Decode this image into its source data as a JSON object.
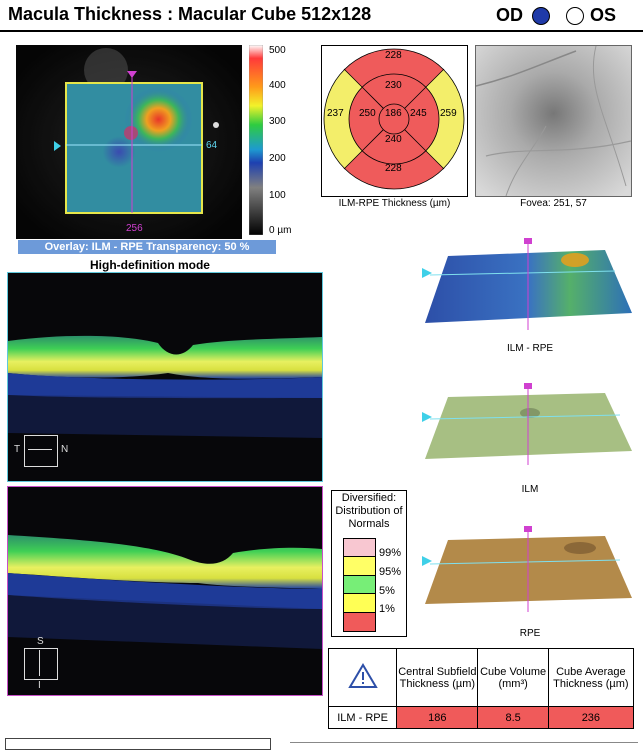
{
  "header": {
    "title": "Macula Thickness : Macular Cube 512x128",
    "eye_od": "OD",
    "eye_os": "OS",
    "od_color": "#1f3aa8"
  },
  "fundus_overlay": {
    "scan_y_label": "64",
    "scan_x_label": "256",
    "overlay_text": "Overlay: ILM - RPE  Transparency: 50 %",
    "scale_labels": [
      "500",
      "400",
      "300",
      "200",
      "100",
      "0 µm"
    ]
  },
  "mode_label": "High-definition mode",
  "etdrs_map": {
    "values": {
      "outer_top": "228",
      "inner_top": "230",
      "outer_left": "237",
      "inner_left": "250",
      "center": "186",
      "inner_right": "245",
      "outer_right": "259",
      "inner_bottom": "240",
      "outer_bottom": "228"
    },
    "caption": "ILM-RPE Thickness (µm)"
  },
  "fovea": {
    "caption": "Fovea: 251, 57"
  },
  "bscan_labels": {
    "horizontal": {
      "left": "T",
      "right": "N"
    },
    "vertical": {
      "top": "S",
      "bottom": "I"
    }
  },
  "surfaces": [
    {
      "caption": "ILM - RPE"
    },
    {
      "caption": "ILM"
    },
    {
      "caption": "RPE"
    }
  ],
  "normals_legend": {
    "title": "Diversified: Distribution of Normals",
    "levels": [
      {
        "label": "99%",
        "color": "#f8c7d1"
      },
      {
        "label": "95%",
        "color": "#ffff66"
      },
      {
        "label": "5%",
        "color": "#77ee77"
      },
      {
        "label": "1%",
        "color": "#ffff55"
      },
      {
        "label": "",
        "color": "#f05a5a"
      }
    ]
  },
  "params_table": {
    "headers": [
      "Central Subfield Thickness (µm)",
      "Cube Volume (mm³)",
      "Cube Average Thickness (µm)"
    ],
    "row_label": "ILM - RPE",
    "values": [
      "186",
      "8.5",
      "236"
    ]
  }
}
